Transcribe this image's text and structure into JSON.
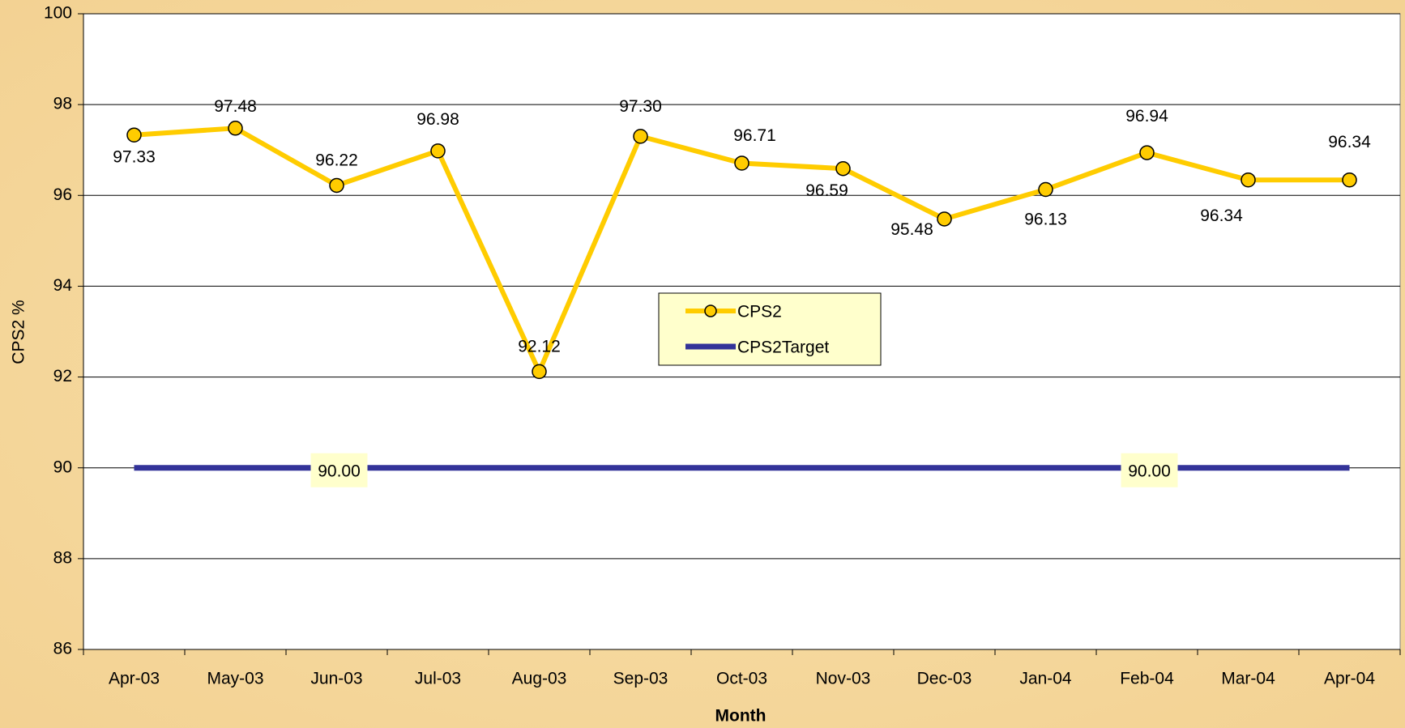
{
  "chart_data": {
    "type": "line",
    "x_label": "Month",
    "y_label": "CPS2  %",
    "categories": [
      "Apr-03",
      "May-03",
      "Jun-03",
      "Jul-03",
      "Aug-03",
      "Sep-03",
      "Oct-03",
      "Nov-03",
      "Dec-03",
      "Jan-04",
      "Feb-04",
      "Mar-04",
      "Apr-04"
    ],
    "series": [
      {
        "name": "CPS2",
        "color": "#ffcc00",
        "marker": "circle",
        "values": [
          97.33,
          97.48,
          96.22,
          96.98,
          92.12,
          97.3,
          96.71,
          96.59,
          95.48,
          96.13,
          96.94,
          96.34,
          96.34
        ],
        "value_labels": [
          "97.33",
          "97.48",
          "96.22",
          "96.98",
          "92.12",
          "97.30",
          "96.71",
          "96.59",
          "95.48",
          "96.13",
          "96.94",
          "96.34",
          "96.34"
        ]
      },
      {
        "name": "CPS2Target",
        "color": "#333399",
        "values": [
          90,
          90,
          90,
          90,
          90,
          90,
          90,
          90,
          90,
          90,
          90,
          90,
          90
        ],
        "value_labels": [
          null,
          null,
          "90.00",
          null,
          null,
          null,
          null,
          null,
          null,
          null,
          "90.00",
          null,
          null
        ]
      }
    ],
    "ylim": [
      86,
      100
    ],
    "yticks": [
      86,
      88,
      90,
      92,
      94,
      96,
      98,
      100
    ],
    "grid": true,
    "legend": "center"
  }
}
